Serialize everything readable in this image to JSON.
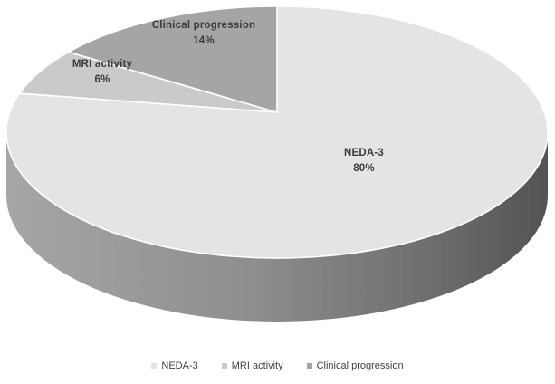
{
  "chart_data": {
    "type": "pie",
    "style": "3d",
    "title": "",
    "categories": [
      "NEDA-3",
      "MRI activity",
      "Clinical progression"
    ],
    "values": [
      80,
      6,
      14
    ],
    "unit": "%",
    "data_labels": [
      "NEDA-3 80%",
      "MRI activity 6%",
      "Clinical progression 14%"
    ],
    "slice_colors": [
      "#e4e4e4",
      "#cacaca",
      "#a5a5a5"
    ],
    "legend": {
      "position": "bottom",
      "entries": [
        "NEDA-3",
        "MRI activity",
        "Clinical progression"
      ]
    },
    "colors": {
      "background": "#ffffff",
      "label_text": "#3b3b3b",
      "legend_text": "#3f3f3f",
      "slice_border": "#ffffff",
      "wall_left": "#a6a6a6",
      "wall_center": "#8e8e8e",
      "wall_right": "#535353"
    }
  }
}
